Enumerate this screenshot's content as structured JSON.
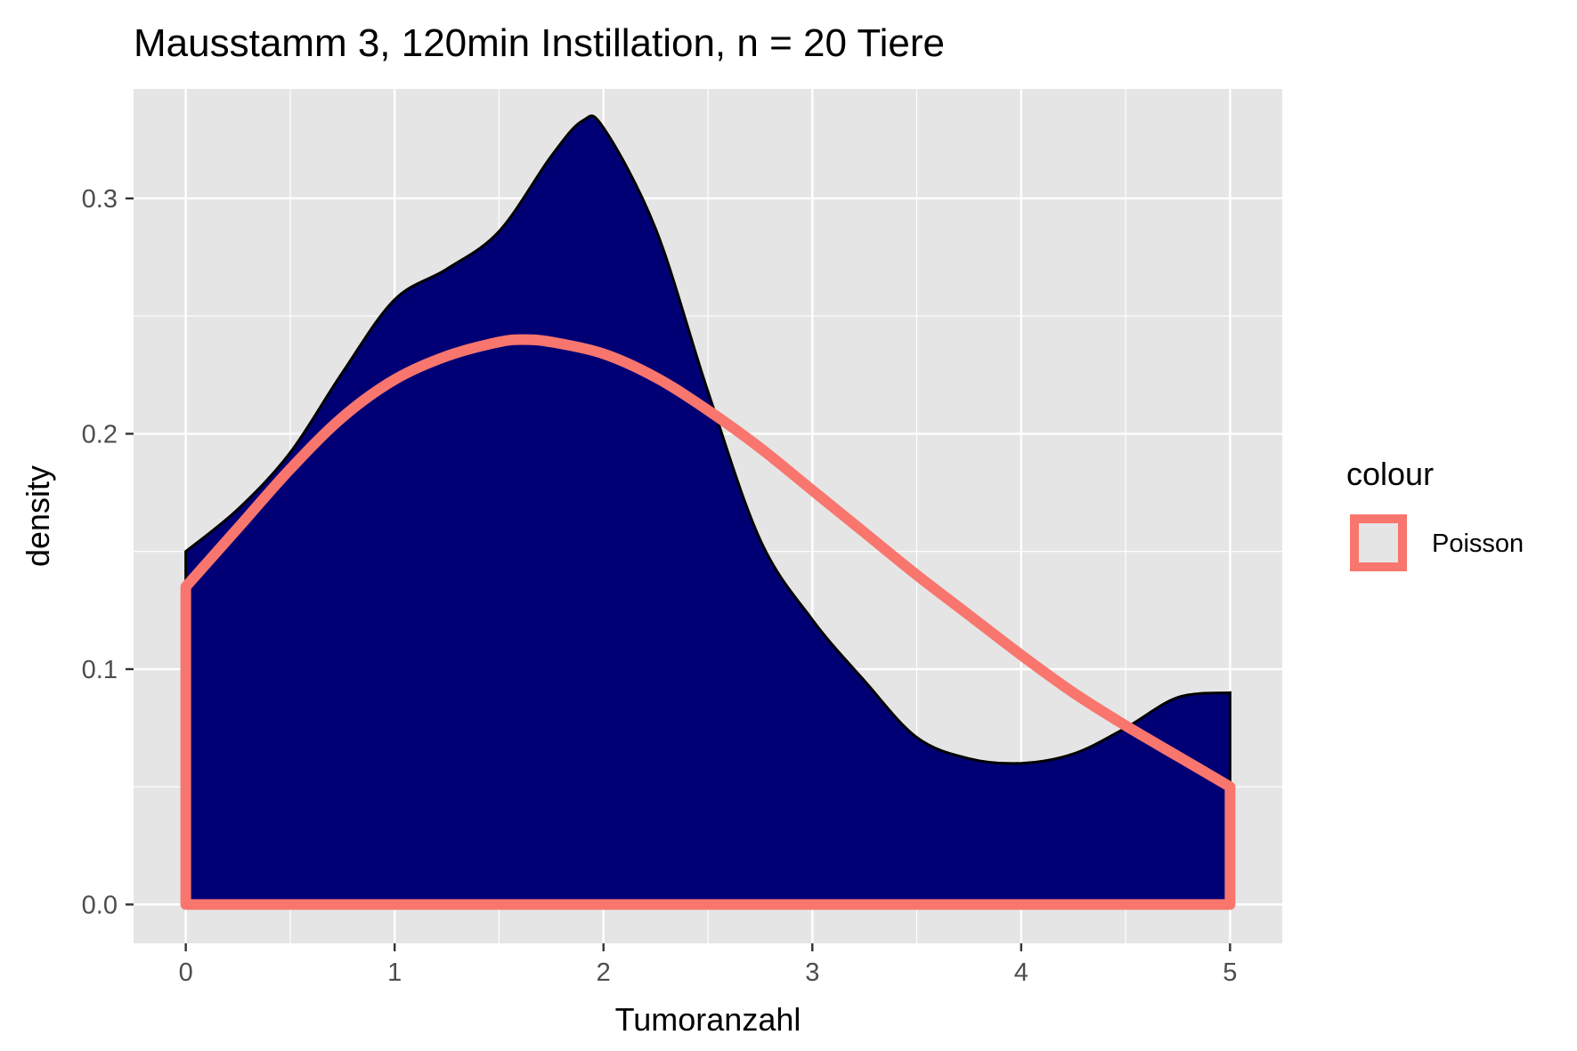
{
  "chart_data": {
    "type": "area",
    "title": "Mausstamm 3, 120min Instillation, n = 20 Tiere",
    "xlabel": "Tumoranzahl",
    "ylabel": "density",
    "xlim": [
      -0.25,
      5.25
    ],
    "ylim": [
      -0.0165,
      0.3465
    ],
    "x_ticks": [
      0,
      1,
      2,
      3,
      4,
      5
    ],
    "x_tick_labels": [
      "0",
      "1",
      "2",
      "3",
      "4",
      "5"
    ],
    "y_ticks": [
      0.0,
      0.1,
      0.2,
      0.3
    ],
    "y_tick_labels": [
      "0.0",
      "0.1",
      "0.2",
      "0.3"
    ],
    "grid": true,
    "legend": {
      "title": "colour",
      "position": "right",
      "entries": [
        "Poisson"
      ]
    },
    "density": {
      "fill": "#000074",
      "stroke": "#000000",
      "x": [
        0,
        0.25,
        0.5,
        0.75,
        1.0,
        1.25,
        1.5,
        1.75,
        1.9,
        2.0,
        2.25,
        2.5,
        2.75,
        3.0,
        3.25,
        3.5,
        3.75,
        4.0,
        4.25,
        4.5,
        4.75,
        5.0
      ],
      "y": [
        0.15,
        0.168,
        0.192,
        0.226,
        0.257,
        0.27,
        0.286,
        0.318,
        0.333,
        0.33,
        0.287,
        0.218,
        0.155,
        0.121,
        0.095,
        0.071,
        0.062,
        0.06,
        0.064,
        0.075,
        0.088,
        0.09
      ]
    },
    "series": [
      {
        "name": "Poisson",
        "color": "#F8766D",
        "x": [
          0,
          0.25,
          0.5,
          0.75,
          1.0,
          1.25,
          1.5,
          1.62,
          1.75,
          2.0,
          2.25,
          2.5,
          2.75,
          3.0,
          3.25,
          3.5,
          3.75,
          4.0,
          4.25,
          4.5,
          4.75,
          5.0
        ],
        "y": [
          0.135,
          0.16,
          0.185,
          0.207,
          0.223,
          0.233,
          0.239,
          0.24,
          0.239,
          0.234,
          0.224,
          0.21,
          0.194,
          0.176,
          0.158,
          0.14,
          0.123,
          0.106,
          0.09,
          0.076,
          0.063,
          0.05
        ]
      }
    ]
  }
}
